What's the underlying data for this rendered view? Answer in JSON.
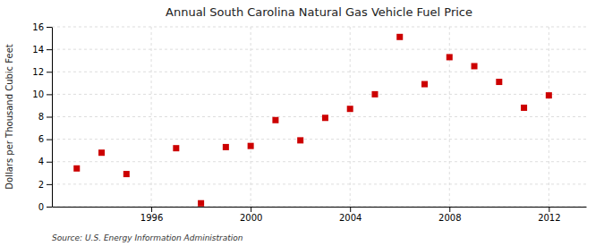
{
  "chart_data": {
    "type": "scatter",
    "title": "Annual South Carolina Natural Gas Vehicle Fuel Price",
    "ylabel": "Dollars per Thousand Cubic Feet",
    "annotations": [
      "Source: U.S. Energy Information Administration"
    ],
    "x": [
      1993,
      1994,
      1995,
      1997,
      1998,
      1999,
      2000,
      2001,
      2002,
      2003,
      2004,
      2005,
      2006,
      2007,
      2008,
      2009,
      2010,
      2011,
      2012
    ],
    "values": [
      3.4,
      4.8,
      2.9,
      5.2,
      0.3,
      5.3,
      5.4,
      7.7,
      5.9,
      7.9,
      8.7,
      10.0,
      15.1,
      10.9,
      13.3,
      12.5,
      11.1,
      8.8,
      9.9
    ],
    "color": "#cc0000",
    "marker": "square",
    "xlim": [
      1992,
      2013.5
    ],
    "ylim": [
      0,
      16
    ],
    "xticks": [
      1996,
      2000,
      2004,
      2008,
      2012
    ],
    "yticks": [
      0,
      2,
      4,
      6,
      8,
      10,
      12,
      14,
      16
    ],
    "grid": true
  }
}
